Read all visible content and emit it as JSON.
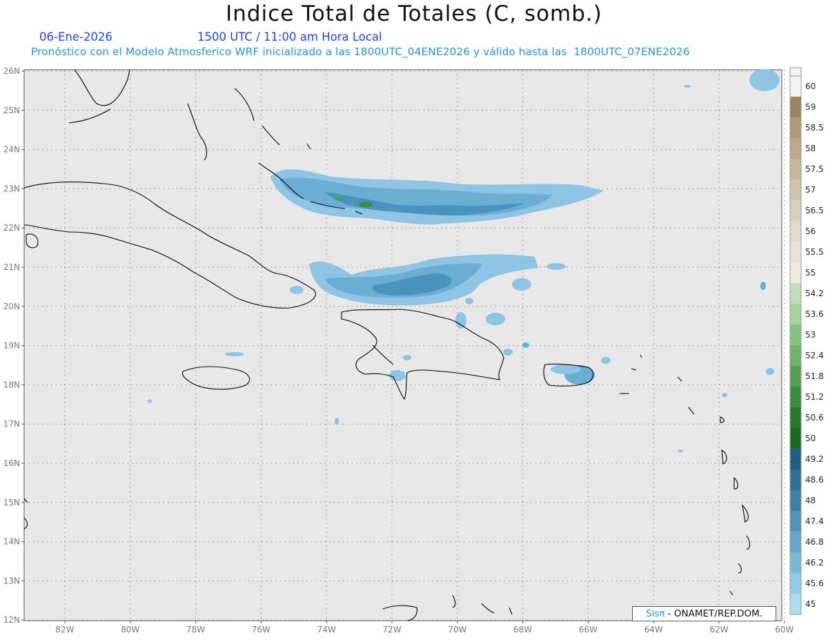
{
  "title": "Indice Total de Totales (C, somb.)",
  "date": "06-Ene-2026",
  "time": "1500 UTC / 11:00 am Hora Local",
  "forecast": "Pronóstico con el Modelo Atmosferico WRF inicializado a las 1800UTC_04ENE2026 y válido hasta las  1800UTC_07ENE2026",
  "credit": {
    "brand": "Sisπ",
    "text": " - ONAMET/REP.DOM."
  },
  "axes": {
    "lon_ticks": [
      "82W",
      "80W",
      "78W",
      "76W",
      "74W",
      "72W",
      "70W",
      "68W",
      "66W",
      "64W",
      "62W",
      "60W"
    ],
    "lat_ticks": [
      "26N",
      "25N",
      "24N",
      "23N",
      "22N",
      "21N",
      "20N",
      "19N",
      "18N",
      "17N",
      "16N",
      "15N",
      "14N",
      "13N",
      "12N"
    ]
  },
  "colorbar": {
    "levels": [
      "60",
      "59",
      "58.5",
      "58",
      "57.5",
      "57",
      "56.5",
      "56",
      "55.5",
      "55",
      "54.2",
      "53.6",
      "53",
      "52.4",
      "51.8",
      "51.2",
      "50.6",
      "50",
      "49.2",
      "48.6",
      "48",
      "47.4",
      "46.8",
      "46.2",
      "45.6",
      "45"
    ],
    "colors": [
      "#f4f4f4",
      "#9c8662",
      "#ae9a78",
      "#bba989",
      "#c6b79b",
      "#d0c4ab",
      "#d9cfbb",
      "#e2dacb",
      "#e9e4d8",
      "#eeebe2",
      "#bfe0b6",
      "#a6d39d",
      "#89c282",
      "#6fb36a",
      "#52a152",
      "#3a8e3c",
      "#24792a",
      "#1a6a22",
      "#1f5f83",
      "#2d6f95",
      "#3d81a6",
      "#4f93b8",
      "#63a6c9",
      "#7bb9d9",
      "#94cbe7",
      "#aedbf2"
    ]
  },
  "colors": {
    "map_bg": "#e8e8e8",
    "coast": "#000000",
    "grid": "#888888"
  }
}
